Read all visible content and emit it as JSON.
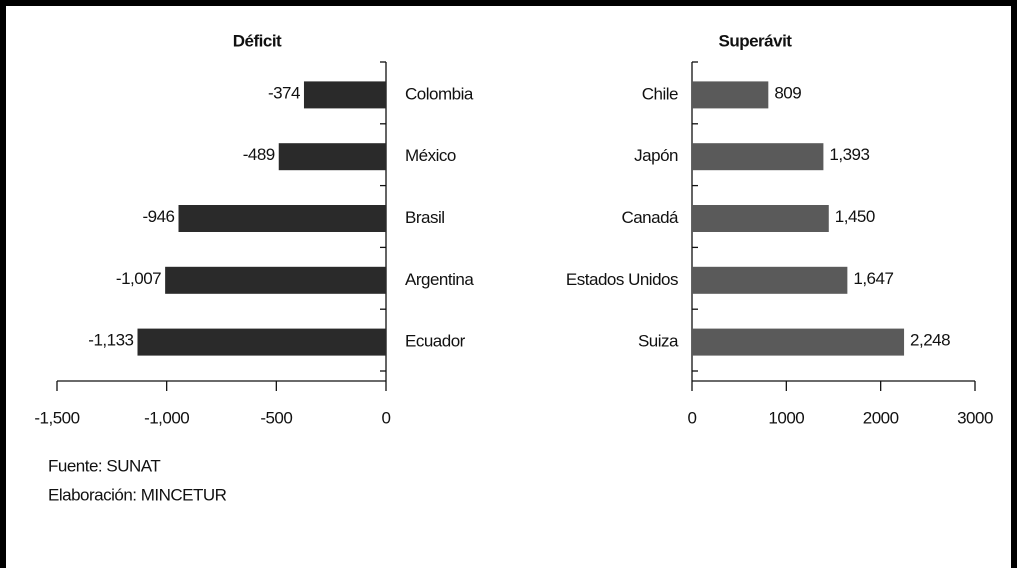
{
  "chart_data": [
    {
      "type": "barh",
      "title": "Déficit",
      "categories": [
        "Colombia",
        "México",
        "Brasil",
        "Argentina",
        "Ecuador"
      ],
      "values": [
        -374,
        -489,
        -946,
        -1007,
        -1133
      ],
      "value_labels": [
        "-374",
        "-489",
        "-946",
        "-1,007",
        "-1,133"
      ],
      "color": "#2a2a2a",
      "xlim": [
        -1500,
        0
      ],
      "xticks": [
        {
          "value": -1500,
          "label": "-1,500"
        },
        {
          "value": -1000,
          "label": "-1,000"
        },
        -500,
        0
      ]
    },
    {
      "type": "barh",
      "title": "Superávit",
      "categories": [
        "Chile",
        "Japón",
        "Canadá",
        "Estados Unidos",
        "Suiza"
      ],
      "values": [
        809,
        1393,
        1450,
        1647,
        2248
      ],
      "value_labels": [
        "809",
        "1,393",
        "1,450",
        "1,647",
        "2,248"
      ],
      "color": "#5a5a5a",
      "xlim": [
        0,
        3000
      ],
      "xticks": [
        0,
        1000,
        2000,
        3000
      ]
    }
  ],
  "notes": [
    "Fuente: SUNAT",
    "Elaboración: MINCETUR"
  ]
}
